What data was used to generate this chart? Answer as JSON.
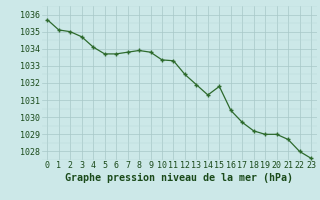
{
  "x": [
    0,
    1,
    2,
    3,
    4,
    5,
    6,
    7,
    8,
    9,
    10,
    11,
    12,
    13,
    14,
    15,
    16,
    17,
    18,
    19,
    20,
    21,
    22,
    23
  ],
  "y": [
    1035.7,
    1035.1,
    1035.0,
    1034.7,
    1034.1,
    1033.7,
    1033.7,
    1033.8,
    1033.9,
    1033.8,
    1033.35,
    1033.3,
    1032.5,
    1031.9,
    1031.3,
    1031.8,
    1030.4,
    1029.7,
    1029.2,
    1029.0,
    1029.0,
    1028.7,
    1028.0,
    1027.6
  ],
  "line_color": "#2d6a2d",
  "marker_color": "#2d6a2d",
  "bg_color": "#cce8e8",
  "grid_minor_color": "#b8d8d8",
  "grid_major_color": "#a8c8c8",
  "title": "Graphe pression niveau de la mer (hPa)",
  "title_color": "#1a4a1a",
  "ylim_min": 1027.5,
  "ylim_max": 1036.5,
  "yticks": [
    1028,
    1029,
    1030,
    1031,
    1032,
    1033,
    1034,
    1035,
    1036
  ],
  "xtick_labels": [
    "0",
    "1",
    "2",
    "3",
    "4",
    "5",
    "6",
    "7",
    "8",
    "9",
    "10",
    "11",
    "12",
    "13",
    "14",
    "15",
    "16",
    "17",
    "18",
    "19",
    "20",
    "21",
    "22",
    "23"
  ],
  "tick_color": "#1a4a1a",
  "tick_fontsize": 6.0,
  "title_fontsize": 7.2
}
